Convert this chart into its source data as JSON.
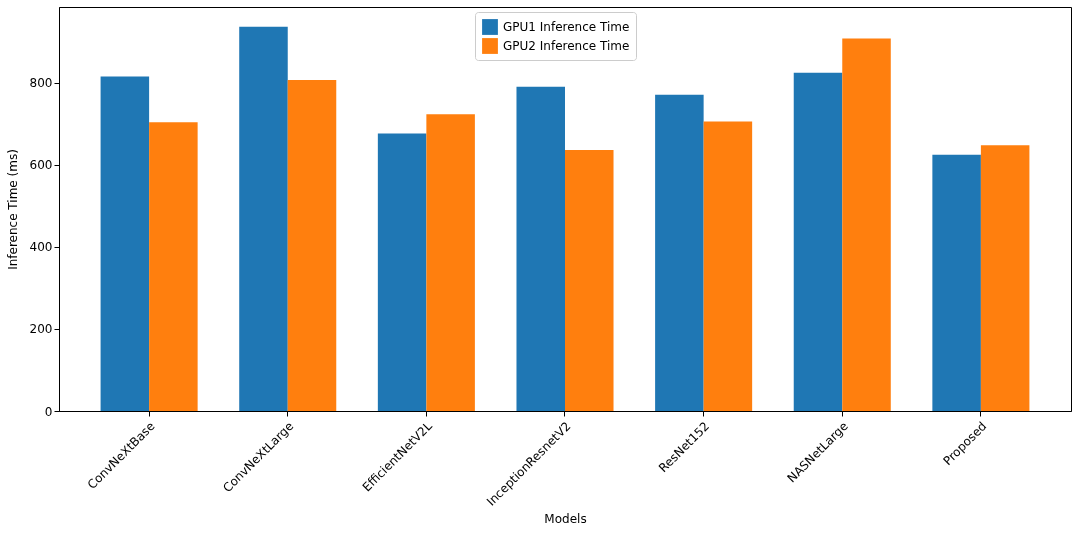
{
  "chart_data": {
    "type": "bar",
    "xlabel": "Models",
    "ylabel": "Inference Time (ms)",
    "categories": [
      "ConvNeXtBase",
      "ConvNeXtLarge",
      "EfficientNetV2L",
      "InceptionResnetV2",
      "ResNet152",
      "NASNetLarge",
      "Proposed"
    ],
    "series": [
      {
        "name": "GPU1 Inference Time",
        "color": "#1f77b4",
        "values": [
          815,
          936,
          676,
          790,
          770,
          824,
          624
        ]
      },
      {
        "name": "GPU2 Inference Time",
        "color": "#ff7f0e",
        "values": [
          703,
          806,
          723,
          636,
          705,
          907,
          647
        ]
      }
    ],
    "ylim": [
      0,
      984
    ],
    "yticks": [
      0,
      200,
      400,
      600,
      800
    ],
    "grid": false,
    "legend": "top"
  }
}
